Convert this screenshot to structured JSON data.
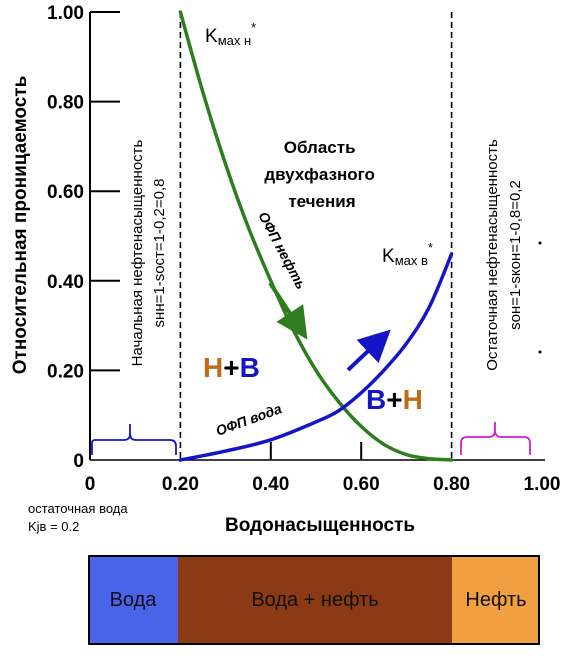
{
  "chart_data": {
    "type": "line",
    "xlabel": "Водонасыщенность",
    "ylabel": "Относительная проницаемость",
    "xlim": [
      0,
      1.0
    ],
    "ylim": [
      0,
      1.0
    ],
    "x_ticks": [
      "0",
      "0.20",
      "0.40",
      "0.60",
      "0.80",
      "1.00"
    ],
    "y_ticks": [
      "0",
      "0.20",
      "0.40",
      "0.60",
      "0.80",
      "1.00"
    ],
    "grid": false,
    "legend": "none",
    "series": [
      {
        "name": "ОФП нефть",
        "color": "#2e7d1e",
        "points": [
          [
            0.2,
            1.0
          ],
          [
            0.25,
            0.82
          ],
          [
            0.3,
            0.66
          ],
          [
            0.35,
            0.52
          ],
          [
            0.4,
            0.4
          ],
          [
            0.45,
            0.29
          ],
          [
            0.5,
            0.2
          ],
          [
            0.55,
            0.13
          ],
          [
            0.6,
            0.075
          ],
          [
            0.65,
            0.035
          ],
          [
            0.7,
            0.012
          ],
          [
            0.75,
            0.003
          ],
          [
            0.8,
            0.0
          ]
        ]
      },
      {
        "name": "ОФП вода",
        "color": "#1515c8",
        "points": [
          [
            0.2,
            0.0
          ],
          [
            0.3,
            0.02
          ],
          [
            0.4,
            0.045
          ],
          [
            0.5,
            0.085
          ],
          [
            0.55,
            0.11
          ],
          [
            0.6,
            0.15
          ],
          [
            0.65,
            0.2
          ],
          [
            0.7,
            0.26
          ],
          [
            0.75,
            0.34
          ],
          [
            0.8,
            0.46
          ]
        ]
      }
    ],
    "vlines": [
      0.2,
      0.8
    ],
    "annotations": {
      "kmax_oil": "Kмах н*",
      "kmax_water": "Kмах в*",
      "two_phase": [
        "Область",
        "двухфазного",
        "течения"
      ],
      "oil_curve_label": "ОФП нефть",
      "water_curve_label": "ОФП вода",
      "left_zone": {
        "a": "Н",
        "plus": "+",
        "b": "В"
      },
      "right_zone": {
        "a": "В",
        "plus": "+",
        "b": "Н"
      },
      "initial_saturation": "Начальная нефтенасыщенность",
      "initial_formula": "sнн=1-sост=1-0,2=0,8",
      "residual_saturation": "Остаточная нефтенасыщенность",
      "residual_formula": "sон=1-sкон=1-0,8=0,2",
      "residual_water": "остаточная вода",
      "kjv": "Kjв = 0.2"
    },
    "colors": {
      "oil_letter": "#c06a1a",
      "water_letter": "#1515c8",
      "left_bracket": "#1515c8",
      "right_bracket": "#d020c8"
    }
  },
  "phase_bar": [
    {
      "label": "Вода",
      "color": "#4a63e8"
    },
    {
      "label": "Вода + нефть",
      "color": "#8b3a14"
    },
    {
      "label": "Нефть",
      "color": "#f0a040"
    }
  ]
}
